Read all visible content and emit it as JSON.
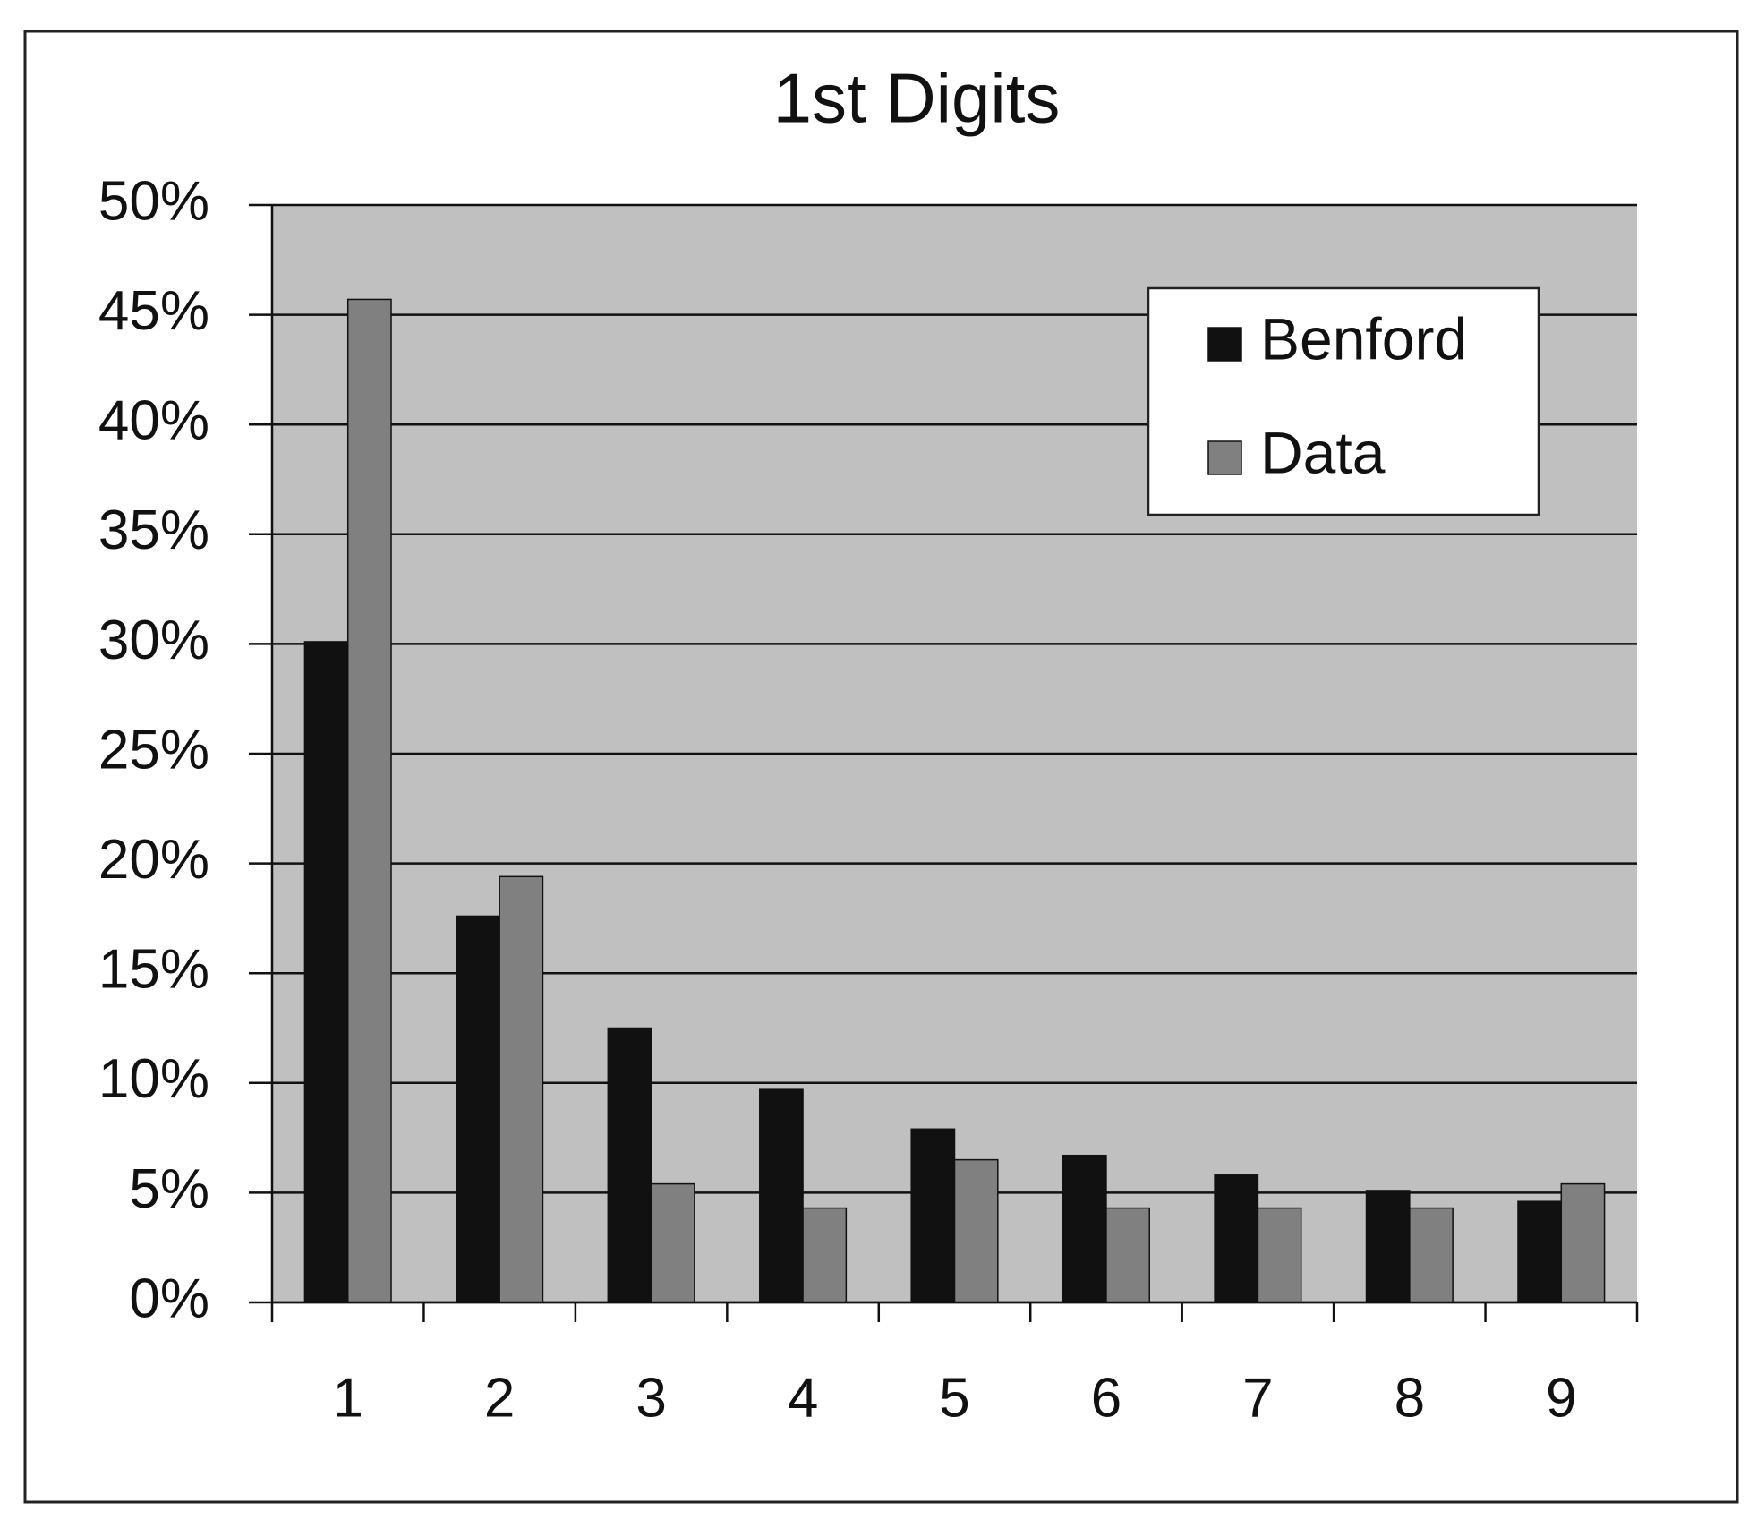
{
  "chart_data": {
    "type": "bar",
    "title": "1st Digits",
    "categories": [
      "1",
      "2",
      "3",
      "4",
      "5",
      "6",
      "7",
      "8",
      "9"
    ],
    "series": [
      {
        "name": "Benford",
        "color": "#111111",
        "values": [
          30.1,
          17.6,
          12.5,
          9.7,
          7.9,
          6.7,
          5.8,
          5.1,
          4.6
        ]
      },
      {
        "name": "Data",
        "color": "#808080",
        "values": [
          45.7,
          19.4,
          5.4,
          4.3,
          6.5,
          4.3,
          4.3,
          4.3,
          5.4
        ]
      }
    ],
    "ylim": [
      0,
      50
    ],
    "yticks": [
      {
        "value": 0,
        "label": "0%"
      },
      {
        "value": 5,
        "label": "5%"
      },
      {
        "value": 10,
        "label": "10%"
      },
      {
        "value": 15,
        "label": "15%"
      },
      {
        "value": 20,
        "label": "20%"
      },
      {
        "value": 25,
        "label": "25%"
      },
      {
        "value": 30,
        "label": "30%"
      },
      {
        "value": 35,
        "label": "35%"
      },
      {
        "value": 40,
        "label": "40%"
      },
      {
        "value": 45,
        "label": "45%"
      },
      {
        "value": 50,
        "label": "50%"
      }
    ],
    "grid": true,
    "legend": "upper right",
    "plot_background": "#c0c0c0"
  }
}
